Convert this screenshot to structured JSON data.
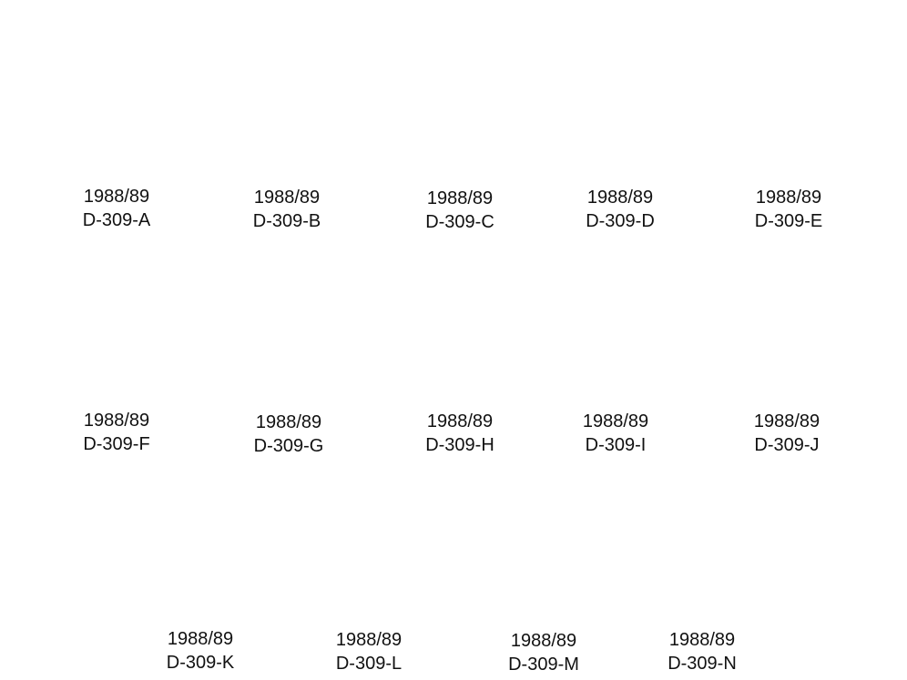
{
  "labels": [
    {
      "year": "1988/89",
      "code": "D-309-A"
    },
    {
      "year": "1988/89",
      "code": "D-309-B"
    },
    {
      "year": "1988/89",
      "code": "D-309-C"
    },
    {
      "year": "1988/89",
      "code": "D-309-D"
    },
    {
      "year": "1988/89",
      "code": "D-309-E"
    },
    {
      "year": "1988/89",
      "code": "D-309-F"
    },
    {
      "year": "1988/89",
      "code": "D-309-G"
    },
    {
      "year": "1988/89",
      "code": "D-309-H"
    },
    {
      "year": "1988/89",
      "code": "D-309-I"
    },
    {
      "year": "1988/89",
      "code": "D-309-J"
    },
    {
      "year": "1988/89",
      "code": "D-309-K"
    },
    {
      "year": "1988/89",
      "code": "D-309-L"
    },
    {
      "year": "1988/89",
      "code": "D-309-M"
    },
    {
      "year": "1988/89",
      "code": "D-309-N"
    }
  ]
}
